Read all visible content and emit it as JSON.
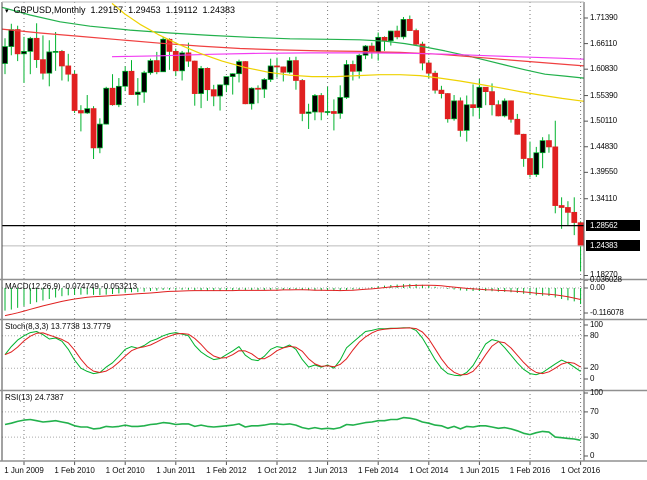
{
  "title": {
    "symbol_period": "GBPUSD,Monthly",
    "open": "1.29157",
    "high": "1.29453",
    "low": "1.19112",
    "close": "1.24383"
  },
  "colors": {
    "green": "#00b22d",
    "red": "#e02020",
    "ma_red": "#f04040",
    "magenta": "#f23cf2",
    "yellow": "#eed202",
    "ma_green": "#22b14c",
    "grid": "#777777",
    "dotted_level": "#aaaaaa",
    "separator": "#909090",
    "axis_line": "#555555",
    "hline_black": "#000000",
    "hline_gray": "#bbbbbb",
    "bull_body": "#000000",
    "bear_body": "#e02020"
  },
  "chart_data": {
    "type": "candlestick-with-indicators",
    "symbol": "GBPUSD",
    "timeframe": "Monthly",
    "current_ohlc": {
      "open": 1.29157,
      "high": 1.29453,
      "low": 1.19112,
      "close": 1.24383
    },
    "price_axis_labels": [
      "1.71390",
      "1.66110",
      "1.60830",
      "1.55390",
      "1.50110",
      "1.44830",
      "1.39550",
      "1.34110",
      "1.18270"
    ],
    "price_badges": [
      {
        "text": "1.28562",
        "price": 1.28562
      },
      {
        "text": "1.24383",
        "price": 1.24383
      }
    ],
    "hlines": {
      "black_level": 1.28562,
      "gray_level": 1.24383
    },
    "time_axis_labels": [
      "1 Jun 2009",
      "1 Feb 2010",
      "1 Oct 2010",
      "1 Jun 2011",
      "1 Feb 2012",
      "1 Oct 2012",
      "1 Jun 2013",
      "1 Feb 2014",
      "1 Oct 2014",
      "1 Jun 2015",
      "1 Feb 2016",
      "1 Oct 2016"
    ],
    "candles_start": "2009-03",
    "candles_note": "monthly OHLC, approx values read from chart",
    "candles": [
      [
        1.62,
        1.672,
        1.598,
        1.655
      ],
      [
        1.655,
        1.702,
        1.637,
        1.69
      ],
      [
        1.69,
        1.698,
        1.625,
        1.64
      ],
      [
        1.64,
        1.675,
        1.58,
        1.645
      ],
      [
        1.645,
        1.675,
        1.598,
        1.672
      ],
      [
        1.672,
        1.703,
        1.611,
        1.628
      ],
      [
        1.628,
        1.678,
        1.587,
        1.6
      ],
      [
        1.6,
        1.668,
        1.573,
        1.644
      ],
      [
        1.644,
        1.685,
        1.605,
        1.645
      ],
      [
        1.645,
        1.648,
        1.585,
        1.615
      ],
      [
        1.615,
        1.64,
        1.583,
        1.598
      ],
      [
        1.598,
        1.605,
        1.518,
        1.523
      ],
      [
        1.523,
        1.534,
        1.48,
        1.518
      ],
      [
        1.518,
        1.555,
        1.516,
        1.527
      ],
      [
        1.527,
        1.532,
        1.423,
        1.446
      ],
      [
        1.446,
        1.507,
        1.435,
        1.495
      ],
      [
        1.495,
        1.572,
        1.494,
        1.569
      ],
      [
        1.569,
        1.598,
        1.533,
        1.535
      ],
      [
        1.535,
        1.59,
        1.53,
        1.573
      ],
      [
        1.573,
        1.614,
        1.563,
        1.604
      ],
      [
        1.604,
        1.627,
        1.555,
        1.556
      ],
      [
        1.556,
        1.59,
        1.533,
        1.561
      ],
      [
        1.561,
        1.605,
        1.539,
        1.601
      ],
      [
        1.601,
        1.63,
        1.597,
        1.626
      ],
      [
        1.626,
        1.644,
        1.598,
        1.603
      ],
      [
        1.603,
        1.674,
        1.603,
        1.67
      ],
      [
        1.67,
        1.672,
        1.607,
        1.645
      ],
      [
        1.645,
        1.651,
        1.594,
        1.605
      ],
      [
        1.605,
        1.646,
        1.585,
        1.642
      ],
      [
        1.642,
        1.663,
        1.613,
        1.625
      ],
      [
        1.625,
        1.626,
        1.533,
        1.558
      ],
      [
        1.558,
        1.615,
        1.528,
        1.61
      ],
      [
        1.61,
        1.612,
        1.543,
        1.566
      ],
      [
        1.566,
        1.576,
        1.532,
        1.553
      ],
      [
        1.553,
        1.577,
        1.523,
        1.576
      ],
      [
        1.576,
        1.593,
        1.561,
        1.593
      ],
      [
        1.593,
        1.6,
        1.556,
        1.599
      ],
      [
        1.599,
        1.628,
        1.581,
        1.624
      ],
      [
        1.624,
        1.625,
        1.536,
        1.537
      ],
      [
        1.537,
        1.571,
        1.525,
        1.569
      ],
      [
        1.569,
        1.575,
        1.538,
        1.567
      ],
      [
        1.567,
        1.59,
        1.549,
        1.587
      ],
      [
        1.587,
        1.63,
        1.582,
        1.615
      ],
      [
        1.615,
        1.632,
        1.591,
        1.613
      ],
      [
        1.613,
        1.614,
        1.583,
        1.602
      ],
      [
        1.602,
        1.633,
        1.599,
        1.626
      ],
      [
        1.626,
        1.634,
        1.566,
        1.585
      ],
      [
        1.585,
        1.588,
        1.501,
        1.517
      ],
      [
        1.517,
        1.537,
        1.485,
        1.52
      ],
      [
        1.52,
        1.557,
        1.503,
        1.554
      ],
      [
        1.554,
        1.559,
        1.503,
        1.52
      ],
      [
        1.52,
        1.572,
        1.513,
        1.521
      ],
      [
        1.521,
        1.546,
        1.482,
        1.517
      ],
      [
        1.517,
        1.575,
        1.506,
        1.55
      ],
      [
        1.55,
        1.627,
        1.547,
        1.618
      ],
      [
        1.618,
        1.626,
        1.585,
        1.604
      ],
      [
        1.604,
        1.64,
        1.589,
        1.637
      ],
      [
        1.637,
        1.658,
        1.629,
        1.656
      ],
      [
        1.656,
        1.663,
        1.63,
        1.644
      ],
      [
        1.644,
        1.684,
        1.626,
        1.674
      ],
      [
        1.674,
        1.676,
        1.646,
        1.667
      ],
      [
        1.667,
        1.688,
        1.657,
        1.687
      ],
      [
        1.687,
        1.698,
        1.67,
        1.675
      ],
      [
        1.675,
        1.716,
        1.67,
        1.711
      ],
      [
        1.711,
        1.719,
        1.687,
        1.688
      ],
      [
        1.688,
        1.692,
        1.657,
        1.66
      ],
      [
        1.66,
        1.665,
        1.606,
        1.621
      ],
      [
        1.621,
        1.627,
        1.59,
        1.6
      ],
      [
        1.6,
        1.605,
        1.558,
        1.565
      ],
      [
        1.565,
        1.574,
        1.548,
        1.558
      ],
      [
        1.558,
        1.559,
        1.498,
        1.506
      ],
      [
        1.506,
        1.555,
        1.502,
        1.543
      ],
      [
        1.543,
        1.55,
        1.469,
        1.482
      ],
      [
        1.482,
        1.554,
        1.459,
        1.535
      ],
      [
        1.535,
        1.577,
        1.511,
        1.529
      ],
      [
        1.529,
        1.588,
        1.507,
        1.571
      ],
      [
        1.571,
        1.571,
        1.534,
        1.562
      ],
      [
        1.562,
        1.579,
        1.513,
        1.535
      ],
      [
        1.535,
        1.544,
        1.511,
        1.512
      ],
      [
        1.512,
        1.548,
        1.509,
        1.543
      ],
      [
        1.543,
        1.544,
        1.498,
        1.505
      ],
      [
        1.505,
        1.516,
        1.473,
        1.474
      ],
      [
        1.474,
        1.475,
        1.407,
        1.424
      ],
      [
        1.424,
        1.459,
        1.385,
        1.391
      ],
      [
        1.391,
        1.448,
        1.386,
        1.436
      ],
      [
        1.436,
        1.468,
        1.404,
        1.461
      ],
      [
        1.461,
        1.474,
        1.436,
        1.448
      ],
      [
        1.448,
        1.502,
        1.311,
        1.327
      ],
      [
        1.327,
        1.344,
        1.279,
        1.323
      ],
      [
        1.323,
        1.336,
        1.285,
        1.313
      ],
      [
        1.313,
        1.344,
        1.266,
        1.292
      ],
      [
        1.29157,
        1.29453,
        1.19112,
        1.24383
      ]
    ],
    "ma_lines": [
      {
        "name": "ma-green",
        "color_key": "ma_green",
        "points": [
          [
            2,
            1.736
          ],
          [
            30,
            1.72
          ],
          [
            60,
            1.706
          ],
          [
            90,
            1.697
          ],
          [
            130,
            1.689
          ],
          [
            170,
            1.683
          ],
          [
            210,
            1.678
          ],
          [
            250,
            1.674
          ],
          [
            290,
            1.671
          ],
          [
            330,
            1.67
          ],
          [
            360,
            1.669
          ],
          [
            385,
            1.666
          ],
          [
            405,
            1.661
          ],
          [
            425,
            1.654
          ],
          [
            445,
            1.646
          ],
          [
            465,
            1.637
          ],
          [
            485,
            1.627
          ],
          [
            505,
            1.617
          ],
          [
            525,
            1.607
          ],
          [
            545,
            1.598
          ],
          [
            565,
            1.594
          ],
          [
            584,
            1.59
          ]
        ]
      },
      {
        "name": "ma-red",
        "color_key": "ma_red",
        "points": [
          [
            2,
            1.691
          ],
          [
            40,
            1.683
          ],
          [
            80,
            1.676
          ],
          [
            120,
            1.669
          ],
          [
            160,
            1.662
          ],
          [
            200,
            1.656
          ],
          [
            240,
            1.651
          ],
          [
            280,
            1.648
          ],
          [
            320,
            1.646
          ],
          [
            360,
            1.645
          ],
          [
            400,
            1.643
          ],
          [
            440,
            1.639
          ],
          [
            470,
            1.634
          ],
          [
            500,
            1.629
          ],
          [
            530,
            1.624
          ],
          [
            560,
            1.619
          ],
          [
            584,
            1.615
          ]
        ]
      },
      {
        "name": "ma-magenta",
        "color_key": "magenta",
        "points": [
          [
            112,
            1.634
          ],
          [
            160,
            1.636
          ],
          [
            210,
            1.639
          ],
          [
            260,
            1.641
          ],
          [
            310,
            1.642
          ],
          [
            360,
            1.642
          ],
          [
            410,
            1.641
          ],
          [
            450,
            1.639
          ],
          [
            490,
            1.636
          ],
          [
            530,
            1.633
          ],
          [
            560,
            1.631
          ],
          [
            584,
            1.629
          ]
        ]
      },
      {
        "name": "ma-yellow",
        "color_key": "yellow",
        "points": [
          [
            112,
            1.744
          ],
          [
            125,
            1.722
          ],
          [
            140,
            1.701
          ],
          [
            158,
            1.68
          ],
          [
            178,
            1.66
          ],
          [
            200,
            1.641
          ],
          [
            222,
            1.625
          ],
          [
            245,
            1.612
          ],
          [
            268,
            1.602
          ],
          [
            290,
            1.596
          ],
          [
            312,
            1.593
          ],
          [
            335,
            1.593
          ],
          [
            358,
            1.595
          ],
          [
            380,
            1.597
          ],
          [
            400,
            1.597
          ],
          [
            420,
            1.595
          ],
          [
            440,
            1.59
          ],
          [
            460,
            1.584
          ],
          [
            480,
            1.577
          ],
          [
            500,
            1.57
          ],
          [
            520,
            1.562
          ],
          [
            540,
            1.555
          ],
          [
            562,
            1.548
          ],
          [
            584,
            1.542
          ]
        ]
      }
    ],
    "macd": {
      "display": "MACD(12,26,9) -0.074749 -0.053213",
      "axis_labels": [
        {
          "text": "0.036028",
          "value": 0.036028
        },
        {
          "text": "0.00",
          "value": 0.0
        },
        {
          "text": "-0.116078",
          "value": -0.116078
        }
      ],
      "histogram": [
        -0.105,
        -0.1,
        -0.092,
        -0.083,
        -0.074,
        -0.066,
        -0.058,
        -0.051,
        -0.044,
        -0.038,
        -0.034,
        -0.032,
        -0.031,
        -0.03,
        -0.032,
        -0.033,
        -0.031,
        -0.028,
        -0.025,
        -0.022,
        -0.02,
        -0.019,
        -0.017,
        -0.014,
        -0.012,
        -0.009,
        -0.008,
        -0.008,
        -0.008,
        -0.008,
        -0.01,
        -0.011,
        -0.012,
        -0.013,
        -0.013,
        -0.012,
        -0.011,
        -0.009,
        -0.01,
        -0.011,
        -0.011,
        -0.01,
        -0.008,
        -0.007,
        -0.007,
        -0.006,
        -0.006,
        -0.008,
        -0.011,
        -0.012,
        -0.013,
        -0.013,
        -0.014,
        -0.013,
        -0.01,
        -0.007,
        -0.004,
        0.0,
        0.004,
        0.008,
        0.011,
        0.014,
        0.016,
        0.018,
        0.019,
        0.018,
        0.015,
        0.011,
        0.006,
        0.001,
        -0.004,
        -0.007,
        -0.011,
        -0.013,
        -0.014,
        -0.014,
        -0.014,
        -0.015,
        -0.017,
        -0.018,
        -0.02,
        -0.023,
        -0.027,
        -0.031,
        -0.034,
        -0.036,
        -0.037,
        -0.044,
        -0.051,
        -0.057,
        -0.062,
        -0.0747
      ],
      "signal": [
        -0.128,
        -0.122,
        -0.115,
        -0.107,
        -0.099,
        -0.091,
        -0.083,
        -0.076,
        -0.069,
        -0.062,
        -0.056,
        -0.051,
        -0.047,
        -0.043,
        -0.041,
        -0.039,
        -0.037,
        -0.035,
        -0.033,
        -0.031,
        -0.029,
        -0.027,
        -0.025,
        -0.023,
        -0.021,
        -0.018,
        -0.016,
        -0.015,
        -0.014,
        -0.013,
        -0.012,
        -0.012,
        -0.012,
        -0.012,
        -0.012,
        -0.012,
        -0.012,
        -0.011,
        -0.011,
        -0.011,
        -0.011,
        -0.011,
        -0.01,
        -0.01,
        -0.009,
        -0.009,
        -0.008,
        -0.008,
        -0.009,
        -0.01,
        -0.01,
        -0.011,
        -0.011,
        -0.012,
        -0.011,
        -0.01,
        -0.008,
        -0.006,
        -0.004,
        -0.001,
        0.002,
        0.005,
        0.007,
        0.009,
        0.011,
        0.012,
        0.013,
        0.013,
        0.012,
        0.01,
        0.007,
        0.004,
        0.001,
        -0.002,
        -0.004,
        -0.006,
        -0.008,
        -0.009,
        -0.011,
        -0.012,
        -0.014,
        -0.016,
        -0.018,
        -0.021,
        -0.024,
        -0.027,
        -0.029,
        -0.032,
        -0.036,
        -0.041,
        -0.047,
        -0.0532
      ]
    },
    "stochastic": {
      "display": "Stoch(8,3,3) 13.7738 13.7779",
      "axis_labels": [
        100,
        80,
        20,
        0
      ],
      "dotted_levels": [
        80,
        20
      ],
      "k_values": [
        45,
        60,
        72,
        80,
        86,
        88,
        82,
        74,
        76,
        70,
        55,
        35,
        20,
        14,
        10,
        12,
        22,
        30,
        42,
        55,
        60,
        57,
        62,
        70,
        74,
        80,
        84,
        86,
        83,
        80,
        62,
        50,
        42,
        36,
        38,
        45,
        52,
        60,
        44,
        36,
        34,
        42,
        55,
        60,
        58,
        63,
        55,
        36,
        22,
        26,
        22,
        26,
        20,
        35,
        58,
        68,
        78,
        88,
        90,
        93,
        93,
        94,
        94,
        95,
        95,
        90,
        76,
        56,
        36,
        20,
        10,
        7,
        6,
        12,
        25,
        45,
        65,
        73,
        70,
        58,
        44,
        30,
        18,
        10,
        8,
        12,
        20,
        28,
        35,
        30,
        22,
        14
      ]
    },
    "rsi": {
      "display": "RSI(13) 24.7387",
      "axis_labels": [
        100,
        70,
        30,
        0
      ],
      "dotted_levels": [
        70,
        30
      ],
      "values": [
        50,
        52,
        55,
        57,
        58,
        56,
        54,
        55,
        56,
        54,
        52,
        48,
        46,
        46,
        43,
        44,
        47,
        46,
        47,
        49,
        47,
        47,
        48,
        50,
        51,
        53,
        52,
        50,
        51,
        51,
        47,
        49,
        47,
        46,
        47,
        48,
        49,
        51,
        46,
        48,
        48,
        49,
        51,
        51,
        50,
        51,
        49,
        45,
        43,
        45,
        43,
        44,
        43,
        45,
        50,
        49,
        51,
        53,
        54,
        56,
        56,
        58,
        58,
        61,
        60,
        58,
        54,
        52,
        49,
        48,
        44,
        47,
        43,
        47,
        46,
        48,
        48,
        46,
        44,
        45,
        43,
        40,
        36,
        34,
        37,
        39,
        38,
        30,
        29,
        28,
        27,
        25
      ]
    }
  }
}
